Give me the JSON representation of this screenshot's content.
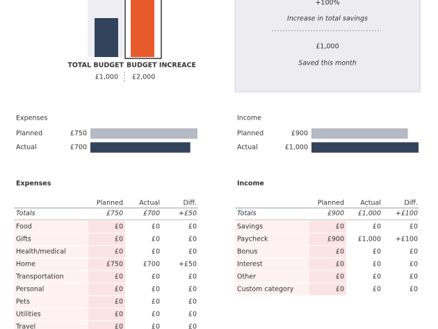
{
  "top_chart": {
    "bars": [
      {
        "label": "TOTAL BUDGET",
        "value": 1000,
        "value_label": "£1,000"
      },
      {
        "label": "BUDGET INCREACE",
        "value": 2000,
        "value_label": "£2,000"
      }
    ]
  },
  "savings_card": {
    "percent": "+100%",
    "percent_caption": "Increase in total savings",
    "amount": "£1,000",
    "amount_caption": "Saved this month"
  },
  "expenses_summary": {
    "title": "Expenses",
    "rows": [
      {
        "label": "Planned",
        "value": 750,
        "value_label": "£750"
      },
      {
        "label": "Actual",
        "value": 700,
        "value_label": "£700"
      }
    ]
  },
  "income_summary": {
    "title": "Income",
    "rows": [
      {
        "label": "Planned",
        "value": 900,
        "value_label": "£900"
      },
      {
        "label": "Actual",
        "value": 1000,
        "value_label": "£1,000"
      }
    ]
  },
  "expenses_table": {
    "title": "Expenses",
    "columns": [
      "Planned",
      "Actual",
      "Diff."
    ],
    "totals": {
      "label": "Totals",
      "cells": [
        "£750",
        "£700",
        "+£50"
      ]
    },
    "rows": [
      [
        "Food",
        "£0",
        "£0",
        "£0"
      ],
      [
        "Gifts",
        "£0",
        "£0",
        "£0"
      ],
      [
        "Health/medical",
        "£0",
        "£0",
        "£0"
      ],
      [
        "Home",
        "£750",
        "£700",
        "+£50"
      ],
      [
        "Transportation",
        "£0",
        "£0",
        "£0"
      ],
      [
        "Personal",
        "£0",
        "£0",
        "£0"
      ],
      [
        "Pets",
        "£0",
        "£0",
        "£0"
      ],
      [
        "Utilities",
        "£0",
        "£0",
        "£0"
      ],
      [
        "Travel",
        "£0",
        "£0",
        "£0"
      ]
    ]
  },
  "income_table": {
    "title": "Income",
    "columns": [
      "Planned",
      "Actual",
      "Diff."
    ],
    "totals": {
      "label": "Totals",
      "cells": [
        "£900",
        "£1,000",
        "+£100"
      ]
    },
    "rows": [
      [
        "Savings",
        "£0",
        "£0",
        "£0"
      ],
      [
        "Paycheck",
        "£900",
        "£1,000",
        "+£100"
      ],
      [
        "Bonus",
        "£0",
        "£0",
        "£0"
      ],
      [
        "Interest",
        "£0",
        "£0",
        "£0"
      ],
      [
        "Other",
        "£0",
        "£0",
        "£0"
      ],
      [
        "Custom category",
        "£0",
        "£0",
        "£0"
      ]
    ]
  }
}
